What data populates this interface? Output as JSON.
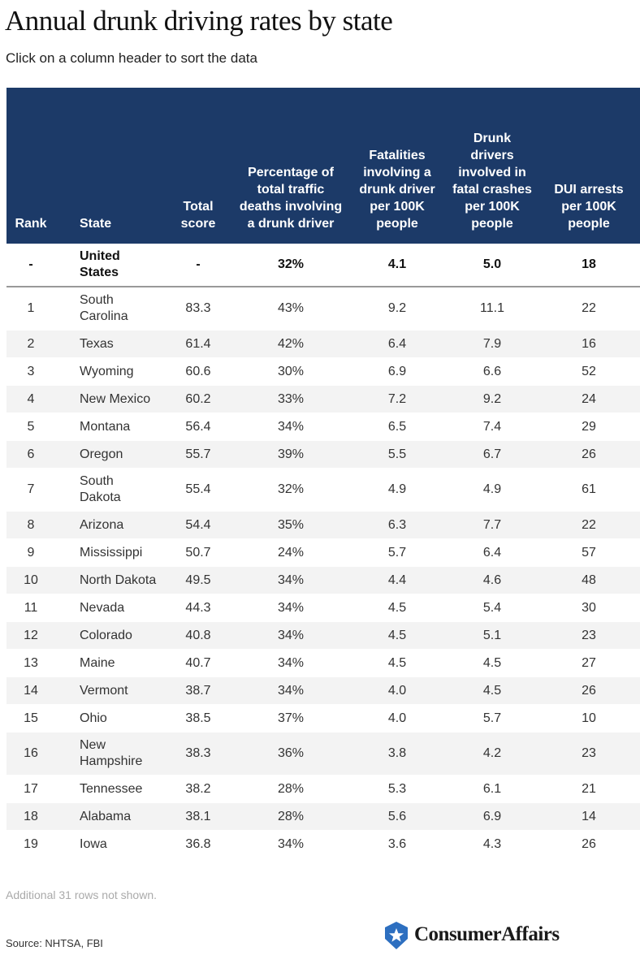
{
  "header": {
    "title": "Annual drunk driving rates by state",
    "subtitle": "Click on a column header to sort the data"
  },
  "table": {
    "columns": [
      "Rank",
      "State",
      "Total score",
      "Percentage of total traffic deaths involving a drunk driver",
      "Fatalities involving a drunk driver per 100K people",
      "Drunk drivers involved in fatal crashes per 100K people",
      "DUI arrests per 100K people"
    ],
    "rows": [
      [
        "-",
        "United States",
        "-",
        "32%",
        "4.1",
        "5.0",
        "18"
      ],
      [
        "1",
        "South Carolina",
        "83.3",
        "43%",
        "9.2",
        "11.1",
        "22"
      ],
      [
        "2",
        "Texas",
        "61.4",
        "42%",
        "6.4",
        "7.9",
        "16"
      ],
      [
        "3",
        "Wyoming",
        "60.6",
        "30%",
        "6.9",
        "6.6",
        "52"
      ],
      [
        "4",
        "New Mexico",
        "60.2",
        "33%",
        "7.2",
        "9.2",
        "24"
      ],
      [
        "5",
        "Montana",
        "56.4",
        "34%",
        "6.5",
        "7.4",
        "29"
      ],
      [
        "6",
        "Oregon",
        "55.7",
        "39%",
        "5.5",
        "6.7",
        "26"
      ],
      [
        "7",
        "South Dakota",
        "55.4",
        "32%",
        "4.9",
        "4.9",
        "61"
      ],
      [
        "8",
        "Arizona",
        "54.4",
        "35%",
        "6.3",
        "7.7",
        "22"
      ],
      [
        "9",
        "Mississippi",
        "50.7",
        "24%",
        "5.7",
        "6.4",
        "57"
      ],
      [
        "10",
        "North Dakota",
        "49.5",
        "34%",
        "4.4",
        "4.6",
        "48"
      ],
      [
        "11",
        "Nevada",
        "44.3",
        "34%",
        "4.5",
        "5.4",
        "30"
      ],
      [
        "12",
        "Colorado",
        "40.8",
        "34%",
        "4.5",
        "5.1",
        "23"
      ],
      [
        "13",
        "Maine",
        "40.7",
        "34%",
        "4.5",
        "4.5",
        "27"
      ],
      [
        "14",
        "Vermont",
        "38.7",
        "34%",
        "4.0",
        "4.5",
        "26"
      ],
      [
        "15",
        "Ohio",
        "38.5",
        "37%",
        "4.0",
        "5.7",
        "10"
      ],
      [
        "16",
        "New Hampshire",
        "38.3",
        "36%",
        "3.8",
        "4.2",
        "23"
      ],
      [
        "17",
        "Tennessee",
        "38.2",
        "28%",
        "5.3",
        "6.1",
        "21"
      ],
      [
        "18",
        "Alabama",
        "38.1",
        "28%",
        "5.6",
        "6.9",
        "14"
      ],
      [
        "19",
        "Iowa",
        "36.8",
        "34%",
        "3.6",
        "4.3",
        "26"
      ]
    ]
  },
  "footer": {
    "note": "Additional 31 rows not shown.",
    "source": "Source: NHTSA, FBI",
    "logo": "ConsumerAffairs"
  }
}
